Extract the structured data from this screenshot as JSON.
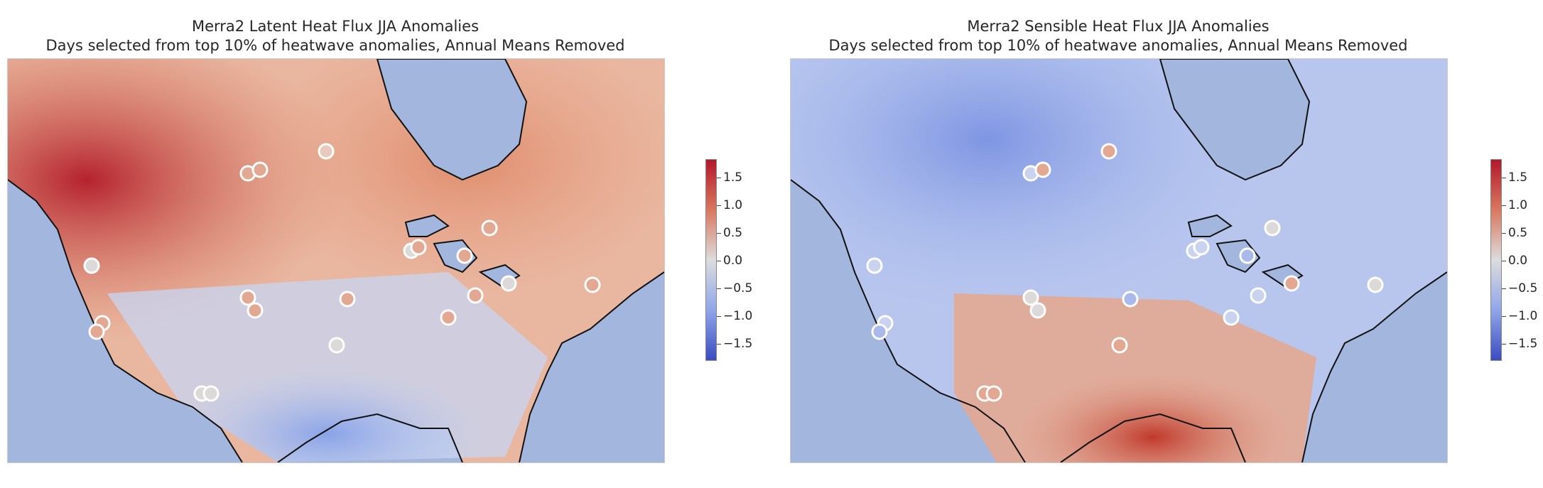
{
  "panels": [
    {
      "title_line1": "Merra2 Latent Heat Flux JJA Anomalies",
      "title_line2": "Days selected from top 10% of heatwave anomalies, Annual Means Removed",
      "colorbar_ticks": [
        "1.5",
        "1.0",
        "0.5",
        "0.0",
        "−0.5",
        "−1.0",
        "−1.5"
      ]
    },
    {
      "title_line1": "Merra2 Sensible Heat Flux JJA Anomalies",
      "title_line2": "Days selected from top 10% of heatwave anomalies, Annual Means Removed",
      "colorbar_ticks": [
        "1.5",
        "1.0",
        "0.5",
        "0.0",
        "−0.5",
        "−1.0",
        "−1.5"
      ]
    }
  ],
  "colors": {
    "ocean": "#a3b6dd",
    "cmap_high": "#b2182b",
    "cmap_mid": "#dddcdc",
    "cmap_low": "#3b4cc0"
  }
}
